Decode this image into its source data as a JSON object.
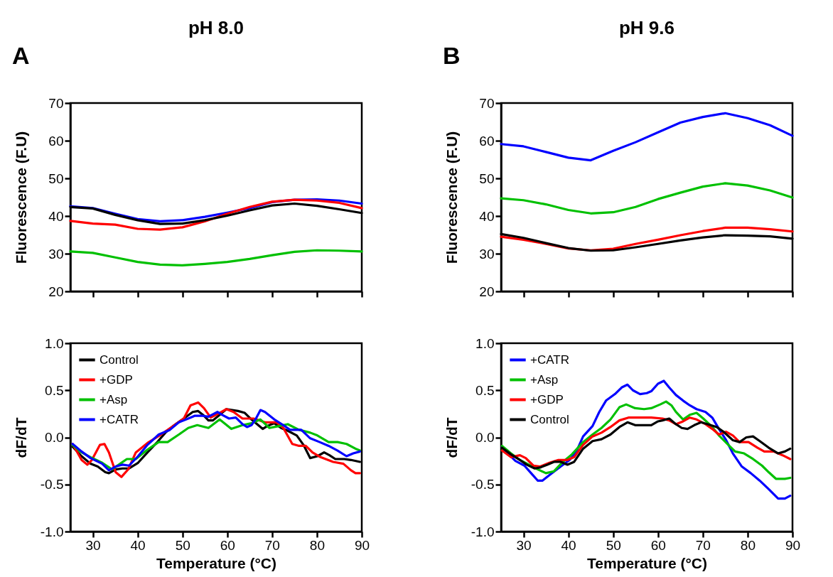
{
  "chart_data": [
    {
      "type": "line",
      "title": "pH 8.0",
      "ylabel": "Fluorescence (F.U)",
      "annotations": [
        "A"
      ],
      "xlim": [
        25,
        90
      ],
      "xticks": [
        30,
        40,
        50,
        60,
        70,
        80,
        90
      ],
      "ylim": [
        20,
        70
      ],
      "yticks": [
        20,
        30,
        40,
        50,
        60,
        70
      ],
      "tick_labels": "y",
      "grid": false,
      "legend": false,
      "x": [
        25,
        30,
        35,
        40,
        45,
        50,
        55,
        60,
        65,
        70,
        75,
        80,
        85,
        90
      ],
      "series": [
        {
          "color": "#0000ff",
          "values": [
            42.6,
            42.1,
            40.6,
            39.2,
            38.6,
            38.9,
            39.8,
            40.9,
            42.1,
            43.7,
            44.3,
            44.4,
            44.1,
            43.3
          ]
        },
        {
          "color": "#00c000",
          "values": [
            30.6,
            30.2,
            29.0,
            27.8,
            27.1,
            26.9,
            27.3,
            27.8,
            28.6,
            29.6,
            30.5,
            30.9,
            30.8,
            30.6
          ]
        },
        {
          "color": "#ff0000",
          "values": [
            38.7,
            38.0,
            37.7,
            36.6,
            36.4,
            37.0,
            38.6,
            40.6,
            42.4,
            43.8,
            44.3,
            44.1,
            43.5,
            42.1
          ]
        },
        {
          "color": "#000000",
          "values": [
            42.4,
            42.0,
            40.3,
            38.9,
            37.9,
            38.0,
            38.9,
            40.1,
            41.5,
            42.8,
            43.3,
            42.7,
            41.8,
            40.8
          ]
        }
      ]
    },
    {
      "type": "line",
      "title": "pH 9.6",
      "ylabel": "Fluorescence (F.U)",
      "annotations": [
        "B"
      ],
      "xlim": [
        25,
        90
      ],
      "xticks": [
        30,
        40,
        50,
        60,
        70,
        80,
        90
      ],
      "ylim": [
        20,
        70
      ],
      "yticks": [
        20,
        30,
        40,
        50,
        60,
        70
      ],
      "tick_labels": "y",
      "grid": false,
      "legend": false,
      "x": [
        25,
        30,
        35,
        40,
        45,
        50,
        55,
        60,
        65,
        70,
        75,
        80,
        85,
        90
      ],
      "series": [
        {
          "color": "#0000ff",
          "values": [
            59.1,
            58.5,
            57.0,
            55.5,
            54.8,
            57.3,
            59.6,
            62.2,
            64.8,
            66.3,
            67.3,
            66.0,
            64.1,
            61.3
          ]
        },
        {
          "color": "#00c000",
          "values": [
            44.7,
            44.2,
            43.1,
            41.6,
            40.7,
            41.0,
            42.4,
            44.5,
            46.2,
            47.8,
            48.7,
            48.1,
            46.8,
            44.9
          ]
        },
        {
          "color": "#ff0000",
          "values": [
            34.5,
            33.7,
            32.6,
            31.4,
            30.9,
            31.3,
            32.6,
            33.7,
            34.9,
            36.0,
            36.9,
            36.9,
            36.5,
            35.9
          ]
        },
        {
          "color": "#000000",
          "values": [
            35.2,
            34.2,
            32.8,
            31.5,
            30.8,
            30.9,
            31.7,
            32.6,
            33.5,
            34.3,
            34.9,
            34.8,
            34.6,
            34.0
          ]
        }
      ]
    },
    {
      "type": "line",
      "xlabel": "Temperature (°C)",
      "ylabel": "dF/dT",
      "xlim": [
        25,
        90
      ],
      "xticks": [
        30,
        40,
        50,
        60,
        70,
        80,
        90
      ],
      "ylim": [
        -1,
        1
      ],
      "yticks": [
        {
          "value": -1,
          "label": "-1.0"
        },
        {
          "value": -0.5,
          "label": "-0.5"
        },
        {
          "value": 0,
          "label": "0.0"
        },
        {
          "value": 0.5,
          "label": "0.5"
        },
        {
          "value": 1,
          "label": "1.0"
        }
      ],
      "grid": false,
      "legend": "top left",
      "series": [
        {
          "name": "Control",
          "color": "#000000",
          "x": [
            25.5,
            27.5,
            29.5,
            31.1,
            32.8,
            33.6,
            35.1,
            36.6,
            38.1,
            40.1,
            42.2,
            44.2,
            46.2,
            48.2,
            50.3,
            52.3,
            53.5,
            54.8,
            55.8,
            56.8,
            58.3,
            59.8,
            62.4,
            63.9,
            65.4,
            66.9,
            67.9,
            68.9,
            70.5,
            72.0,
            73.5,
            75.5,
            77.0,
            78.5,
            80.1,
            81.6,
            82.8,
            84.1,
            86.1,
            87.6,
            89.6
          ],
          "values": [
            -0.1,
            -0.2,
            -0.28,
            -0.31,
            -0.37,
            -0.38,
            -0.34,
            -0.33,
            -0.33,
            -0.27,
            -0.16,
            -0.06,
            0.05,
            0.13,
            0.2,
            0.27,
            0.28,
            0.23,
            0.18,
            0.18,
            0.24,
            0.3,
            0.28,
            0.26,
            0.19,
            0.13,
            0.09,
            0.12,
            0.15,
            0.1,
            0.07,
            0.02,
            -0.08,
            -0.22,
            -0.2,
            -0.16,
            -0.19,
            -0.23,
            -0.23,
            -0.24,
            -0.26
          ]
        },
        {
          "name": "+GDP",
          "color": "#ff0000",
          "x": [
            25.5,
            27.5,
            28.8,
            29.8,
            31.6,
            32.6,
            33.6,
            35.1,
            36.4,
            37.9,
            39.6,
            42.2,
            45.2,
            48.2,
            50.3,
            51.8,
            53.5,
            54.8,
            56.3,
            58.3,
            59.8,
            61.4,
            63.4,
            65.9,
            68.4,
            71.0,
            72.5,
            74.5,
            76.0,
            77.5,
            79.0,
            80.8,
            83.6,
            85.9,
            87.6,
            88.6,
            89.6
          ],
          "values": [
            -0.07,
            -0.24,
            -0.29,
            -0.24,
            -0.08,
            -0.07,
            -0.16,
            -0.37,
            -0.42,
            -0.34,
            -0.16,
            -0.06,
            0.03,
            0.13,
            0.2,
            0.34,
            0.37,
            0.31,
            0.21,
            0.26,
            0.3,
            0.27,
            0.2,
            0.2,
            0.16,
            0.16,
            0.1,
            -0.07,
            -0.09,
            -0.09,
            -0.16,
            -0.21,
            -0.26,
            -0.28,
            -0.35,
            -0.38,
            -0.38
          ]
        },
        {
          "name": "+Asp",
          "color": "#00c000",
          "x": [
            25.5,
            27.5,
            29.5,
            32.1,
            34.3,
            36.1,
            37.6,
            39.6,
            42.2,
            44.7,
            46.7,
            49.2,
            51.3,
            53.3,
            55.8,
            58.3,
            60.9,
            63.4,
            65.4,
            67.4,
            69.4,
            71.5,
            73.5,
            76.0,
            78.5,
            80.1,
            82.6,
            84.6,
            86.6,
            88.6,
            89.6
          ],
          "values": [
            -0.08,
            -0.16,
            -0.21,
            -0.27,
            -0.34,
            -0.28,
            -0.23,
            -0.23,
            -0.13,
            -0.05,
            -0.05,
            0.03,
            0.1,
            0.13,
            0.1,
            0.19,
            0.09,
            0.13,
            0.15,
            0.19,
            0.1,
            0.12,
            0.14,
            0.08,
            0.05,
            0.02,
            -0.05,
            -0.05,
            -0.07,
            -0.12,
            -0.14
          ]
        },
        {
          "name": "+CATR",
          "color": "#0000ff",
          "x": [
            25.5,
            27.5,
            29.5,
            32.1,
            33.6,
            35.1,
            36.6,
            38.1,
            40.1,
            42.2,
            44.7,
            47.2,
            49.2,
            51.3,
            52.8,
            54.3,
            55.8,
            57.8,
            58.8,
            60.4,
            61.9,
            63.4,
            64.4,
            65.4,
            66.4,
            67.4,
            68.4,
            70.5,
            72.5,
            74.0,
            76.5,
            78.5,
            80.6,
            82.6,
            84.6,
            86.6,
            88.1,
            89.6
          ],
          "values": [
            -0.07,
            -0.15,
            -0.22,
            -0.28,
            -0.35,
            -0.31,
            -0.29,
            -0.3,
            -0.2,
            -0.08,
            0.03,
            0.08,
            0.16,
            0.2,
            0.23,
            0.23,
            0.22,
            0.27,
            0.24,
            0.2,
            0.21,
            0.14,
            0.11,
            0.13,
            0.2,
            0.29,
            0.27,
            0.19,
            0.13,
            0.08,
            0.08,
            -0.01,
            -0.05,
            -0.09,
            -0.14,
            -0.2,
            -0.17,
            -0.15
          ]
        }
      ]
    },
    {
      "type": "line",
      "xlabel": "Temperature (°C)",
      "ylabel": "dF/dT",
      "xlim": [
        25,
        90
      ],
      "xticks": [
        30,
        40,
        50,
        60,
        70,
        80,
        90
      ],
      "ylim": [
        -1,
        1
      ],
      "yticks": [
        {
          "value": -1,
          "label": "-1.0"
        },
        {
          "value": -0.5,
          "label": "-0.5"
        },
        {
          "value": 0,
          "label": "0.0"
        },
        {
          "value": 0.5,
          "label": "0.5"
        },
        {
          "value": 1,
          "label": "1.0"
        }
      ],
      "grid": false,
      "legend": "top left",
      "series": [
        {
          "name": "+CATR",
          "color": "#0000ff",
          "x": [
            25.2,
            26.7,
            28.2,
            30.2,
            31.7,
            33.2,
            34.2,
            35.8,
            38.3,
            40.3,
            41.8,
            43.3,
            45.4,
            46.9,
            48.4,
            50.4,
            51.9,
            53.2,
            54.4,
            56.0,
            57.5,
            58.5,
            60.0,
            61.3,
            62.5,
            64.0,
            65.6,
            67.1,
            68.6,
            70.6,
            72.1,
            73.6,
            75.2,
            76.7,
            78.7,
            80.7,
            82.7,
            84.7,
            86.8,
            88.3,
            89.5
          ],
          "values": [
            -0.1,
            -0.18,
            -0.25,
            -0.3,
            -0.38,
            -0.46,
            -0.46,
            -0.4,
            -0.31,
            -0.24,
            -0.15,
            0.01,
            0.12,
            0.27,
            0.39,
            0.46,
            0.53,
            0.56,
            0.5,
            0.46,
            0.47,
            0.49,
            0.57,
            0.6,
            0.53,
            0.45,
            0.39,
            0.34,
            0.3,
            0.27,
            0.21,
            0.09,
            -0.03,
            -0.17,
            -0.31,
            -0.38,
            -0.46,
            -0.55,
            -0.65,
            -0.65,
            -0.62
          ]
        },
        {
          "name": "+Asp",
          "color": "#00c000",
          "x": [
            25.2,
            27.2,
            29.2,
            31.2,
            33.2,
            35.0,
            36.8,
            38.8,
            40.8,
            43.3,
            45.4,
            47.4,
            49.4,
            51.4,
            52.9,
            54.9,
            56.9,
            58.5,
            60.5,
            61.8,
            63.0,
            64.0,
            65.6,
            67.1,
            68.6,
            70.1,
            72.1,
            73.6,
            75.7,
            77.2,
            79.2,
            81.2,
            83.2,
            84.7,
            86.3,
            88.3,
            89.5
          ],
          "values": [
            -0.09,
            -0.17,
            -0.24,
            -0.29,
            -0.34,
            -0.38,
            -0.36,
            -0.26,
            -0.18,
            -0.05,
            0.03,
            0.1,
            0.19,
            0.32,
            0.35,
            0.31,
            0.3,
            0.31,
            0.35,
            0.38,
            0.34,
            0.27,
            0.19,
            0.24,
            0.26,
            0.2,
            0.11,
            0.02,
            -0.08,
            -0.15,
            -0.17,
            -0.23,
            -0.3,
            -0.37,
            -0.44,
            -0.44,
            -0.43
          ]
        },
        {
          "name": "+GDP",
          "color": "#ff0000",
          "x": [
            25.2,
            27.2,
            29.2,
            30.5,
            32.2,
            33.7,
            35.8,
            37.8,
            39.8,
            41.3,
            43.3,
            45.4,
            47.4,
            49.4,
            51.4,
            53.4,
            56.5,
            58.5,
            61.0,
            62.5,
            64.0,
            65.6,
            67.1,
            68.6,
            70.6,
            72.1,
            73.6,
            75.2,
            76.7,
            78.2,
            80.2,
            82.2,
            83.7,
            85.8,
            87.8,
            89.5
          ],
          "values": [
            -0.14,
            -0.21,
            -0.19,
            -0.22,
            -0.3,
            -0.31,
            -0.27,
            -0.24,
            -0.24,
            -0.21,
            -0.08,
            0.01,
            0.05,
            0.11,
            0.18,
            0.21,
            0.21,
            0.21,
            0.2,
            0.18,
            0.14,
            0.17,
            0.21,
            0.19,
            0.14,
            0.09,
            0.03,
            0.06,
            0.02,
            -0.05,
            -0.05,
            -0.11,
            -0.15,
            -0.15,
            -0.19,
            -0.23
          ]
        },
        {
          "name": "Control",
          "color": "#000000",
          "x": [
            25.2,
            27.2,
            29.2,
            30.7,
            32.5,
            33.7,
            35.3,
            36.8,
            38.3,
            39.8,
            41.3,
            43.3,
            45.4,
            47.4,
            49.4,
            51.4,
            53.2,
            54.9,
            56.5,
            58.5,
            60.0,
            61.0,
            62.5,
            64.0,
            65.3,
            66.6,
            68.1,
            69.6,
            71.1,
            73.1,
            74.6,
            76.7,
            78.2,
            79.7,
            81.2,
            82.7,
            84.7,
            86.8,
            88.3,
            89.5
          ],
          "values": [
            -0.11,
            -0.18,
            -0.24,
            -0.29,
            -0.33,
            -0.32,
            -0.29,
            -0.26,
            -0.26,
            -0.29,
            -0.26,
            -0.12,
            -0.04,
            -0.02,
            0.03,
            0.11,
            0.16,
            0.13,
            0.13,
            0.13,
            0.17,
            0.18,
            0.2,
            0.14,
            0.1,
            0.09,
            0.13,
            0.16,
            0.14,
            0.11,
            0.06,
            -0.03,
            -0.05,
            0.0,
            0.01,
            -0.04,
            -0.11,
            -0.17,
            -0.15,
            -0.12
          ]
        }
      ]
    }
  ]
}
